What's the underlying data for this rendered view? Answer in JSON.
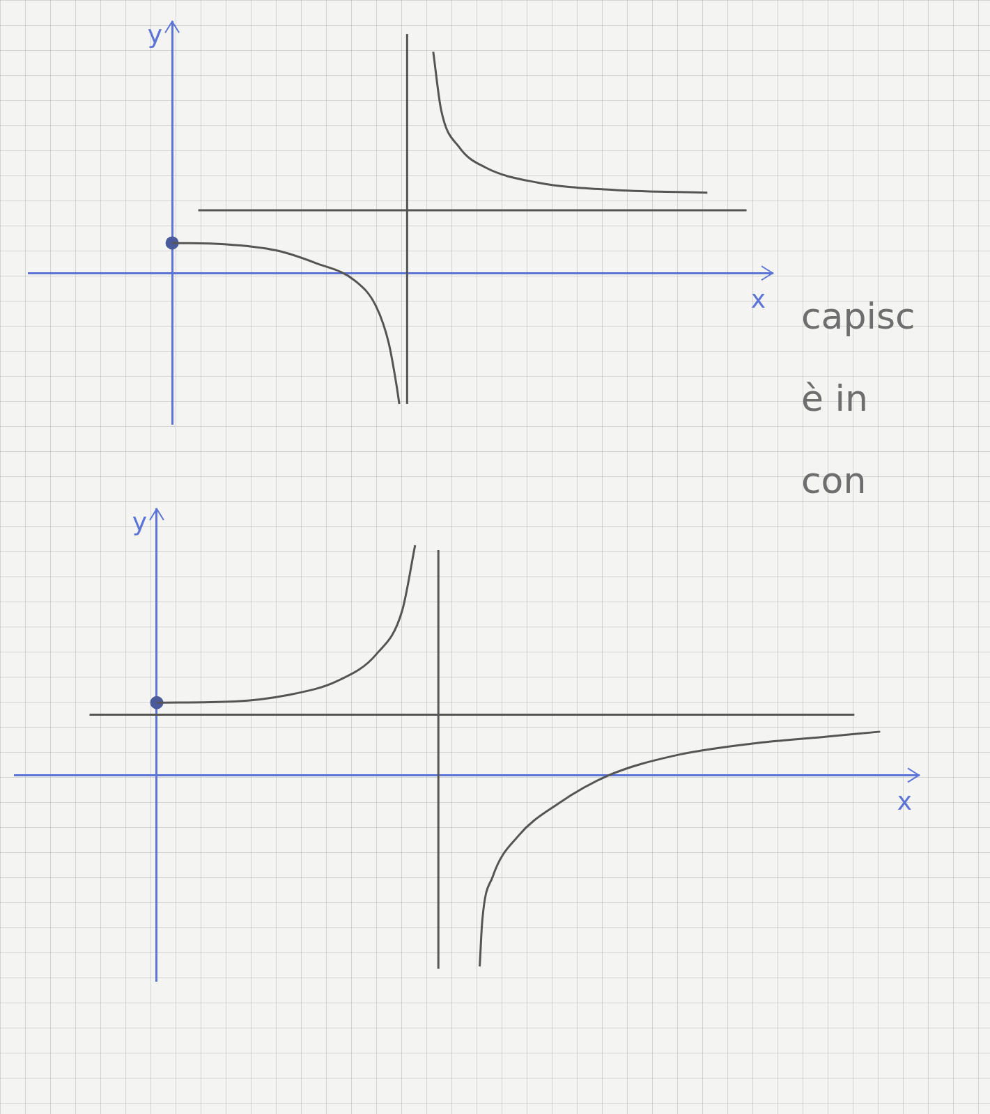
{
  "chart_data": [
    {
      "type": "line",
      "x_label": "x",
      "y_label": "y",
      "grid": false,
      "tick_labels": false,
      "xlim": [
        -5.5,
        23
      ],
      "ylim": [
        -6,
        10
      ],
      "annotations": [
        "capisc",
        "è in",
        "con"
      ],
      "series": [
        {
          "color": "#555555",
          "line_style": "solid",
          "x": [
            0,
            2,
            4,
            5.5,
            7,
            7.8,
            8.3,
            8.6,
            8.7
          ],
          "values": [
            1.2,
            1.15,
            0.9,
            0.4,
            -0.3,
            -1.3,
            -2.8,
            -4.5,
            -5.2
          ]
        },
        {
          "color": "#555555",
          "line_style": "solid",
          "x": [
            10,
            10.3,
            11,
            12,
            14,
            17,
            20.5
          ],
          "values": [
            8.8,
            6.5,
            5,
            4.2,
            3.6,
            3.3,
            3.2
          ]
        },
        {
          "color": "#555555",
          "line_style": "solid",
          "x": [
            9,
            9
          ],
          "values": [
            -5.2,
            9.5
          ]
        },
        {
          "color": "#555555",
          "line_style": "solid",
          "x": [
            1,
            22
          ],
          "values": [
            2.5,
            2.5
          ]
        },
        {
          "type": "scatter",
          "marker": "circle",
          "color": "#4a5a9a",
          "x": [
            0
          ],
          "values": [
            1.2
          ]
        }
      ]
    },
    {
      "type": "line",
      "x_label": "x",
      "y_label": "y",
      "grid": false,
      "tick_labels": false,
      "xlim": [
        -5.5,
        29.5
      ],
      "ylim": [
        -8.5,
        11
      ],
      "series": [
        {
          "color": "#555555",
          "line_style": "solid",
          "x": [
            0,
            3,
            5,
            7,
            8.5,
            9.5,
            10
          ],
          "values": [
            3,
            3.05,
            3.3,
            3.9,
            5,
            6.8,
            9.5
          ]
        },
        {
          "color": "#555555",
          "line_style": "solid",
          "x": [
            12.5,
            12.6,
            13,
            14,
            15.5,
            17.5,
            20,
            23,
            26,
            28
          ],
          "values": [
            -7.9,
            -6,
            -4.2,
            -2.5,
            -1.2,
            0,
            0.8,
            1.3,
            1.6,
            1.8
          ]
        },
        {
          "color": "#555555",
          "line_style": "solid",
          "x": [
            10.9,
            10.9
          ],
          "values": [
            -8,
            9.3
          ]
        },
        {
          "color": "#555555",
          "line_style": "solid",
          "x": [
            -2.6,
            27
          ],
          "values": [
            2.5,
            2.5
          ]
        },
        {
          "type": "scatter",
          "marker": "circle",
          "color": "#4a5a9a",
          "x": [
            0
          ],
          "values": [
            3
          ]
        }
      ]
    }
  ]
}
